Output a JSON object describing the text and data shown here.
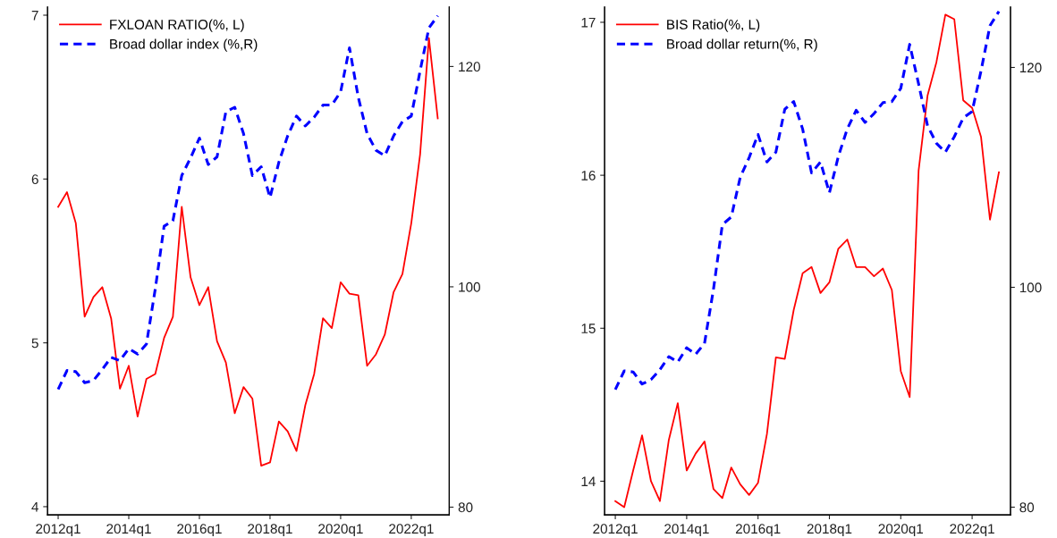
{
  "chart_data": [
    {
      "type": "line",
      "categories": [
        "2012q1",
        null,
        null,
        null,
        null,
        null,
        null,
        null,
        "2014q1",
        null,
        null,
        null,
        null,
        null,
        null,
        null,
        "2016q1",
        null,
        null,
        null,
        null,
        null,
        null,
        null,
        "2018q1",
        null,
        null,
        null,
        null,
        null,
        null,
        null,
        "2020q1",
        null,
        null,
        null,
        null,
        null,
        null,
        null,
        "2022q1",
        null,
        null,
        null
      ],
      "series": [
        {
          "name": "FXLOAN RATIO(%, L)",
          "color": "#ff0000",
          "line_style": "solid",
          "values": [
            5.83,
            5.92,
            5.73,
            5.16,
            5.28,
            5.34,
            5.15,
            4.72,
            4.86,
            4.55,
            4.78,
            4.81,
            5.03,
            5.16,
            5.83,
            5.4,
            5.23,
            5.34,
            5.01,
            4.88,
            4.57,
            4.73,
            4.66,
            4.25,
            4.27,
            4.52,
            4.46,
            4.34,
            4.62,
            4.81,
            5.15,
            5.09,
            5.37,
            5.3,
            5.29,
            4.86,
            4.93,
            5.05,
            5.31,
            5.42,
            5.73,
            6.15,
            6.86,
            6.37
          ]
        },
        {
          "name": "Broad dollar index (%,R)",
          "color": "#0000ff",
          "line_style": "dashed",
          "axis": "y2",
          "values": [
            90.7,
            92.4,
            92.3,
            91.3,
            91.5,
            92.5,
            93.6,
            93.3,
            94.4,
            93.9,
            94.8,
            99.8,
            105.5,
            106.0,
            110.1,
            111.7,
            113.5,
            111.1,
            111.8,
            115.9,
            116.3,
            113.9,
            110.1,
            110.9,
            108.1,
            111.3,
            113.7,
            115.5,
            114.6,
            115.4,
            116.5,
            116.5,
            117.7,
            121.7,
            117.2,
            113.9,
            112.4,
            111.9,
            113.7,
            115.0,
            115.5,
            119.6,
            123.5,
            124.6
          ]
        }
      ],
      "ylim": [
        3.95,
        7.05
      ],
      "yticks": [
        4,
        5,
        6,
        7
      ],
      "y2lim": [
        79.3,
        125.4
      ],
      "y2ticks": [
        80,
        100,
        120
      ],
      "legend": "top left",
      "grid": false
    },
    {
      "type": "line",
      "categories": [
        "2012q1",
        null,
        null,
        null,
        null,
        null,
        null,
        null,
        "2014q1",
        null,
        null,
        null,
        null,
        null,
        null,
        null,
        "2016q1",
        null,
        null,
        null,
        null,
        null,
        null,
        null,
        "2018q1",
        null,
        null,
        null,
        null,
        null,
        null,
        null,
        "2020q1",
        null,
        null,
        null,
        null,
        null,
        null,
        null,
        "2022q1",
        null,
        null,
        null
      ],
      "series": [
        {
          "name": "BIS Ratio(%, L)",
          "color": "#ff0000",
          "line_style": "solid",
          "values": [
            13.87,
            13.83,
            14.07,
            14.3,
            14.0,
            13.87,
            14.27,
            14.51,
            14.07,
            14.18,
            14.26,
            13.95,
            13.89,
            14.09,
            13.98,
            13.91,
            13.99,
            14.31,
            14.81,
            14.8,
            15.12,
            15.36,
            15.4,
            15.23,
            15.3,
            15.52,
            15.58,
            15.4,
            15.4,
            15.34,
            15.39,
            15.25,
            14.72,
            14.55,
            16.03,
            16.52,
            16.74,
            17.05,
            17.02,
            16.49,
            16.44,
            16.25,
            15.71,
            16.02
          ]
        },
        {
          "name": "Broad dollar return(%, R)",
          "color": "#0000ff",
          "line_style": "dashed",
          "axis": "y2",
          "values": [
            90.7,
            92.4,
            92.3,
            91.2,
            91.6,
            92.5,
            93.7,
            93.2,
            94.5,
            93.9,
            94.9,
            99.8,
            105.7,
            106.4,
            110.0,
            111.8,
            113.9,
            111.4,
            112.3,
            116.2,
            116.9,
            114.4,
            110.4,
            111.4,
            108.6,
            111.9,
            114.4,
            116.1,
            115.0,
            115.8,
            116.8,
            116.9,
            118.1,
            122.1,
            118.5,
            114.7,
            113.1,
            112.3,
            113.7,
            115.4,
            116.0,
            119.7,
            123.8,
            125.1
          ]
        }
      ],
      "ylim": [
        13.78,
        17.1
      ],
      "yticks": [
        14,
        15,
        16,
        17
      ],
      "y2lim": [
        79.3,
        125.5
      ],
      "y2ticks": [
        80,
        100,
        120
      ],
      "legend": "top left",
      "grid": false
    }
  ]
}
